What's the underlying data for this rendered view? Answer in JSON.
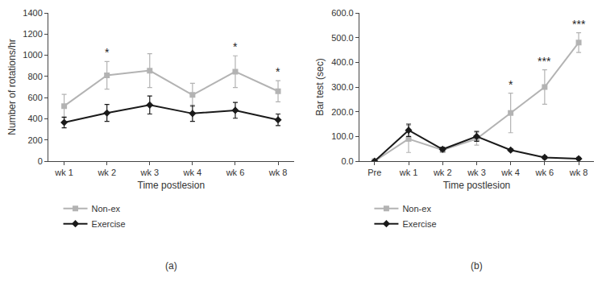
{
  "chart_data": [
    {
      "type": "line",
      "panel_label": "(a)",
      "x_label": "Time postlesion",
      "y_label": "Number of rotations/hr",
      "categories": [
        "wk 1",
        "wk 2",
        "wk 3",
        "wk 4",
        "wk 6",
        "wk 8"
      ],
      "series": [
        {
          "name": "Non-ex",
          "color": "#b3b3b3",
          "marker": "square",
          "values": [
            520,
            810,
            855,
            625,
            845,
            660
          ],
          "errors": [
            110,
            130,
            160,
            110,
            150,
            100
          ]
        },
        {
          "name": "Exercise",
          "color": "#1a1a1a",
          "marker": "diamond",
          "values": [
            365,
            455,
            530,
            450,
            480,
            390
          ],
          "errors": [
            50,
            80,
            85,
            75,
            75,
            55
          ]
        }
      ],
      "ylim": [
        0,
        1400
      ],
      "yticks": [
        0,
        200,
        400,
        600,
        800,
        1000,
        1200,
        1400
      ],
      "grid": false,
      "annotations": [
        {
          "x": "wk 2",
          "text": "*"
        },
        {
          "x": "wk 6",
          "text": "*"
        },
        {
          "x": "wk 8",
          "text": "*"
        }
      ]
    },
    {
      "type": "line",
      "panel_label": "(b)",
      "x_label": "Time postlesion",
      "y_label": "Bar test (sec)",
      "categories": [
        "Pre",
        "wk 1",
        "wk 2",
        "wk 3",
        "wk 4",
        "wk 6",
        "wk 8"
      ],
      "series": [
        {
          "name": "Non-ex",
          "color": "#b3b3b3",
          "marker": "square",
          "values": [
            0,
            90,
            45,
            90,
            195,
            300,
            480
          ],
          "errors": [
            0,
            55,
            10,
            25,
            80,
            70,
            40
          ]
        },
        {
          "name": "Exercise",
          "color": "#1a1a1a",
          "marker": "diamond",
          "values": [
            0,
            125,
            48,
            100,
            45,
            15,
            10
          ],
          "errors": [
            0,
            25,
            8,
            20,
            5,
            5,
            5
          ]
        }
      ],
      "ylim": [
        0,
        600
      ],
      "yticks": [
        {
          "value": 0,
          "label": "0.0"
        },
        {
          "value": 100,
          "label": "100.0"
        },
        {
          "value": 200,
          "label": "200.0"
        },
        {
          "value": 300,
          "label": "300.0"
        },
        {
          "value": 400,
          "label": "400.0"
        },
        {
          "value": 500,
          "label": "500.0"
        },
        {
          "value": 600,
          "label": "600.0"
        }
      ],
      "grid": false,
      "annotations": [
        {
          "x": "wk 4",
          "text": "*"
        },
        {
          "x": "wk 6",
          "text": "***"
        },
        {
          "x": "wk 8",
          "text": "***"
        }
      ]
    }
  ]
}
